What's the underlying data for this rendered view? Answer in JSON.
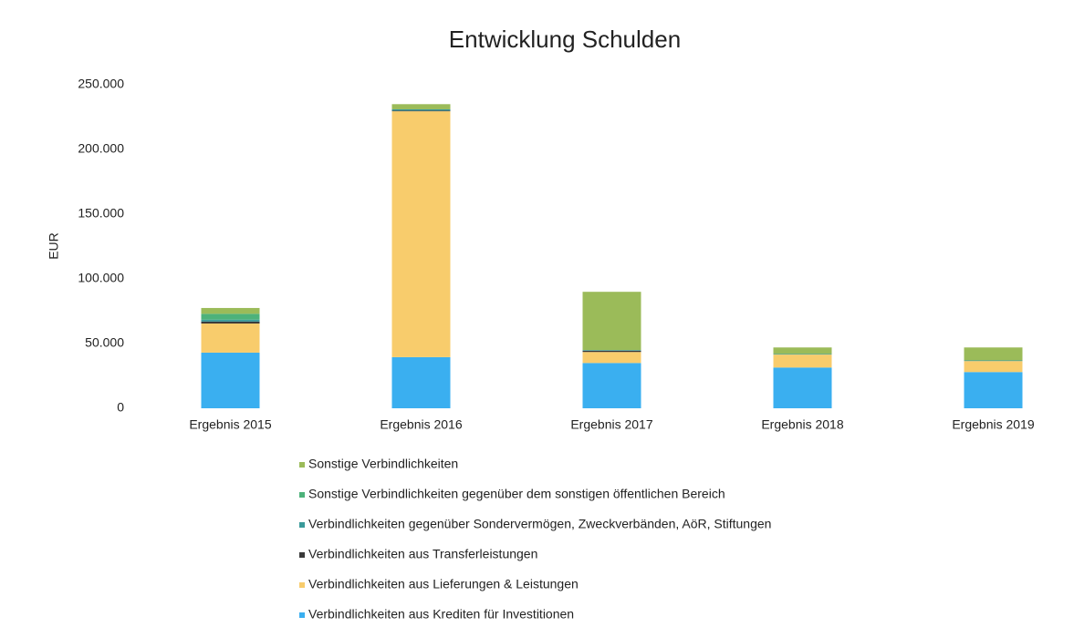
{
  "chart_data": {
    "type": "stacked_bar",
    "title": "Entwicklung Schulden",
    "y_label": "EUR",
    "categories": [
      "Ergebnis 2015",
      "Ergebnis 2016",
      "Ergebnis 2017",
      "Ergebnis 2018",
      "Ergebnis 2019"
    ],
    "series": [
      {
        "name": "Verbindlichkeiten aus Krediten für Investitionen",
        "color": "#3aaff0",
        "values": [
          43000,
          39500,
          35000,
          31500,
          28000
        ]
      },
      {
        "name": "Verbindlichkeiten aus Lieferungen & Leistungen",
        "color": "#f8cc6c",
        "values": [
          22500,
          190000,
          8500,
          10000,
          8500
        ]
      },
      {
        "name": "Verbindlichkeiten aus Transferleistungen",
        "color": "#3a3a3a",
        "values": [
          1500,
          500,
          1000,
          0,
          0
        ]
      },
      {
        "name": "Verbindlichkeiten gegenüber Sondervermögen, Zweckverbänden, AöR, Stiftungen",
        "color": "#3a9a9a",
        "values": [
          1500,
          1000,
          500,
          500,
          500
        ]
      },
      {
        "name": "Sonstige Verbindlichkeiten gegenüber dem sonstigen öffentlichen Bereich",
        "color": "#4db27a",
        "values": [
          4500,
          0,
          0,
          0,
          0
        ]
      },
      {
        "name": "Sonstige Verbindlichkeiten",
        "color": "#9bbb59",
        "values": [
          4500,
          4000,
          45000,
          5000,
          10000
        ]
      }
    ],
    "ylim": [
      0,
      250000
    ],
    "yticks": [
      0,
      {
        "value": 50000,
        "label": "50.000"
      },
      {
        "value": 100000,
        "label": "100.000"
      },
      {
        "value": 150000,
        "label": "150.000"
      },
      {
        "value": 200000,
        "label": "200.000"
      },
      {
        "value": 250000,
        "label": "250.000"
      }
    ],
    "grid": false
  }
}
